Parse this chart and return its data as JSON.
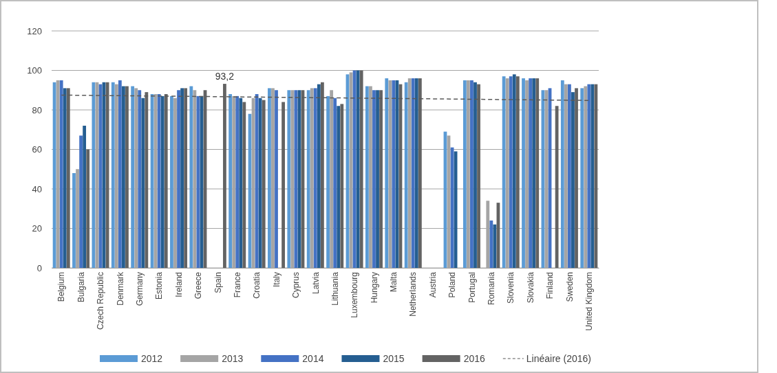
{
  "chart_data": {
    "type": "bar",
    "categories": [
      "Belgium",
      "Bulgaria",
      "Czech Republic",
      "Denmark",
      "Germany",
      "Estonia",
      "Ireland",
      "Greece",
      "Spain",
      "France",
      "Croatia",
      "Italy",
      "Cyprus",
      "Latvia",
      "Lithuania",
      "Luxembourg",
      "Hungary",
      "Malta",
      "Netherlands",
      "Austria",
      "Poland",
      "Portugal",
      "Romania",
      "Slovenia",
      "Slovakia",
      "Finland",
      "Sweden",
      "United Kingdom"
    ],
    "series": [
      {
        "name": "2012",
        "color": "#5b9bd5",
        "values": [
          94,
          48,
          94,
          94,
          92,
          88,
          87,
          92,
          null,
          88,
          78,
          91,
          90,
          90,
          87,
          98,
          92,
          96,
          94,
          null,
          69,
          95,
          null,
          97,
          96,
          90,
          95,
          91
        ]
      },
      {
        "name": "2013",
        "color": "#a5a5a5",
        "values": [
          95,
          50,
          94,
          93,
          91,
          88,
          86,
          90,
          null,
          87,
          86,
          91,
          90,
          91,
          90,
          99,
          92,
          95,
          96,
          null,
          67,
          95,
          34,
          96,
          95,
          90,
          93,
          92
        ]
      },
      {
        "name": "2014",
        "color": "#4472c4",
        "values": [
          95,
          67,
          93,
          95,
          90,
          88,
          90,
          87,
          null,
          87,
          88,
          90,
          90,
          91,
          86,
          100,
          90,
          95,
          96,
          null,
          61,
          95,
          24,
          97,
          96,
          91,
          93,
          93
        ]
      },
      {
        "name": "2015",
        "color": "#255e91",
        "values": [
          91,
          72,
          94,
          92,
          86,
          87,
          91,
          87,
          null,
          86,
          86,
          null,
          90,
          93,
          82,
          100,
          90,
          95,
          96,
          null,
          59,
          94,
          22,
          98,
          96,
          null,
          89,
          93
        ]
      },
      {
        "name": "2016",
        "color": "#636363",
        "values": [
          91,
          60,
          94,
          92,
          89,
          88,
          91,
          90,
          93.2,
          84,
          85,
          84,
          90,
          94,
          83,
          100,
          90,
          93,
          96,
          null,
          null,
          93,
          33,
          97,
          96,
          82,
          91,
          93
        ],
        "value_labels": [
          null,
          null,
          null,
          null,
          null,
          null,
          null,
          null,
          "93,2",
          null,
          null,
          null,
          null,
          null,
          null,
          null,
          null,
          null,
          null,
          null,
          null,
          null,
          null,
          null,
          null,
          null,
          null,
          null
        ]
      },
      {
        "name": "Linéaire  (2016)",
        "type": "line",
        "color": "#595959",
        "line_style": "dashed",
        "values": [
          87.5,
          87.4,
          87.3,
          87.2,
          87.1,
          87.0,
          86.9,
          86.8,
          86.7,
          86.6,
          86.5,
          86.4,
          86.3,
          86.2,
          86.1,
          86.0,
          85.9,
          85.8,
          85.7,
          85.6,
          85.5,
          85.4,
          85.3,
          85.2,
          85.1,
          85.0,
          84.9,
          84.8
        ]
      }
    ],
    "ylim": [
      0,
      120
    ],
    "yticks": [
      0,
      20,
      40,
      60,
      80,
      100,
      120
    ],
    "grid": "y",
    "legend": "bottom"
  }
}
